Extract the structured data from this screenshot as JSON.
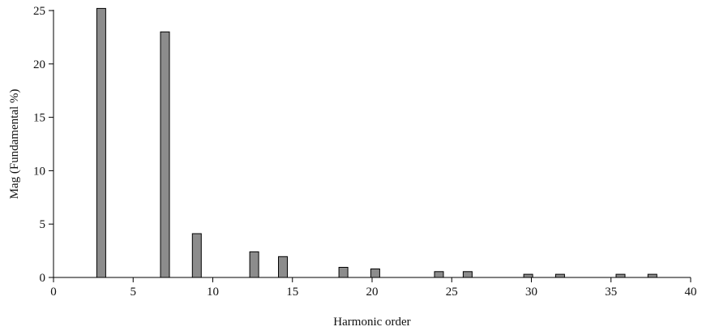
{
  "chart_data": {
    "type": "bar",
    "title": "",
    "xlabel": "Harmonic order",
    "ylabel": "Mag (Fundamental %)",
    "xlim": [
      0,
      40
    ],
    "ylim": [
      0,
      25
    ],
    "xticks": [
      0,
      5,
      10,
      15,
      20,
      25,
      30,
      35,
      40
    ],
    "yticks": [
      0,
      5,
      10,
      15,
      20,
      25
    ],
    "grid": false,
    "bar_color": "#8c8c8c",
    "x": [
      3,
      7,
      9,
      12.6,
      14.4,
      18.2,
      20.2,
      24.2,
      26,
      29.8,
      31.8,
      35.6,
      37.6
    ],
    "values": [
      25.2,
      23,
      4.1,
      2.4,
      1.95,
      0.95,
      0.8,
      0.55,
      0.55,
      0.3,
      0.3,
      0.3,
      0.3
    ]
  }
}
